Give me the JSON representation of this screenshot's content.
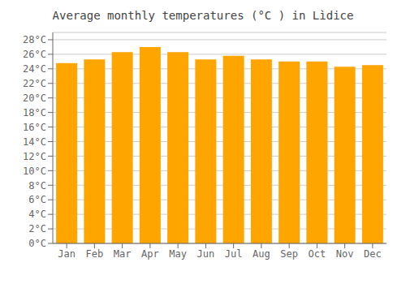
{
  "chart_data": {
    "type": "bar",
    "title": "Average monthly temperatures (°C ) in Lìdice",
    "categories": [
      "Jan",
      "Feb",
      "Mar",
      "Apr",
      "May",
      "Jun",
      "Jul",
      "Aug",
      "Sep",
      "Oct",
      "Nov",
      "Dec"
    ],
    "values": [
      24.8,
      25.3,
      26.3,
      27.0,
      26.3,
      25.3,
      25.8,
      25.3,
      25.0,
      25.0,
      24.3,
      24.5
    ],
    "color": "#FFA500",
    "ylim": [
      0,
      29
    ],
    "yticks": [
      {
        "value": 0,
        "label": "0°C"
      },
      {
        "value": 2,
        "label": "2°C"
      },
      {
        "value": 4,
        "label": "4°C"
      },
      {
        "value": 6,
        "label": "6°C"
      },
      {
        "value": 8,
        "label": "8°C"
      },
      {
        "value": 10,
        "label": "10°C"
      },
      {
        "value": 12,
        "label": "12°C"
      },
      {
        "value": 14,
        "label": "14°C"
      },
      {
        "value": 16,
        "label": "16°C"
      },
      {
        "value": 18,
        "label": "18°C"
      },
      {
        "value": 20,
        "label": "20°C"
      },
      {
        "value": 22,
        "label": "22°C"
      },
      {
        "value": 24,
        "label": "24°C"
      },
      {
        "value": 26,
        "label": "26°C"
      },
      {
        "value": 28,
        "label": "28°C"
      }
    ],
    "grid": true
  }
}
